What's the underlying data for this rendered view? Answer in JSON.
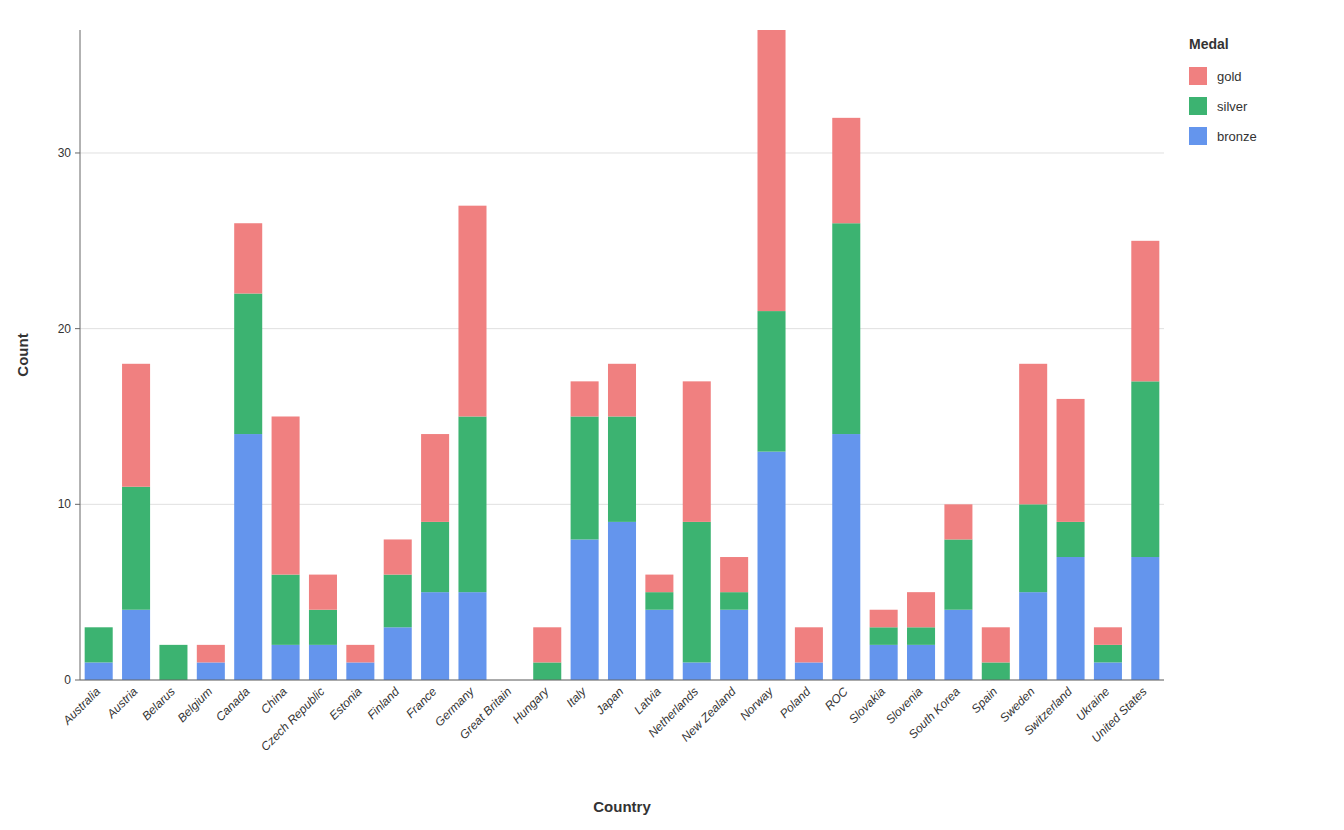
{
  "chart_data": {
    "type": "bar",
    "stacked": true,
    "xlabel": "Country",
    "ylabel": "Count",
    "legend_title": "Medal",
    "categories": [
      "Australia",
      "Austria",
      "Belarus",
      "Belgium",
      "Canada",
      "China",
      "Czech Republic",
      "Estonia",
      "Finland",
      "France",
      "Germany",
      "Great Britain",
      "Hungary",
      "Italy",
      "Japan",
      "Latvia",
      "Netherlands",
      "New Zealand",
      "Norway",
      "Poland",
      "ROC",
      "Slovakia",
      "Slovenia",
      "South Korea",
      "Spain",
      "Sweden",
      "Switzerland",
      "Ukraine",
      "United States"
    ],
    "series": [
      {
        "name": "bronze",
        "color": "#6495ED",
        "values": [
          1,
          4,
          0,
          1,
          14,
          2,
          2,
          1,
          3,
          5,
          5,
          0,
          0,
          8,
          9,
          4,
          1,
          4,
          13,
          1,
          14,
          2,
          2,
          4,
          0,
          5,
          7,
          1,
          7
        ]
      },
      {
        "name": "silver",
        "color": "#3CB371",
        "values": [
          2,
          7,
          2,
          0,
          8,
          4,
          2,
          0,
          3,
          4,
          10,
          0,
          1,
          7,
          6,
          1,
          8,
          1,
          8,
          0,
          12,
          1,
          1,
          4,
          1,
          5,
          2,
          1,
          10
        ]
      },
      {
        "name": "gold",
        "color": "#F08080",
        "values": [
          0,
          7,
          0,
          1,
          4,
          9,
          2,
          1,
          2,
          5,
          12,
          0,
          2,
          2,
          3,
          1,
          8,
          2,
          16,
          2,
          6,
          1,
          2,
          2,
          2,
          8,
          7,
          1,
          8
        ]
      }
    ],
    "ylim": [
      0,
      37
    ],
    "yticks": [
      0,
      10,
      20,
      30
    ],
    "grid": true,
    "legend": "right"
  }
}
